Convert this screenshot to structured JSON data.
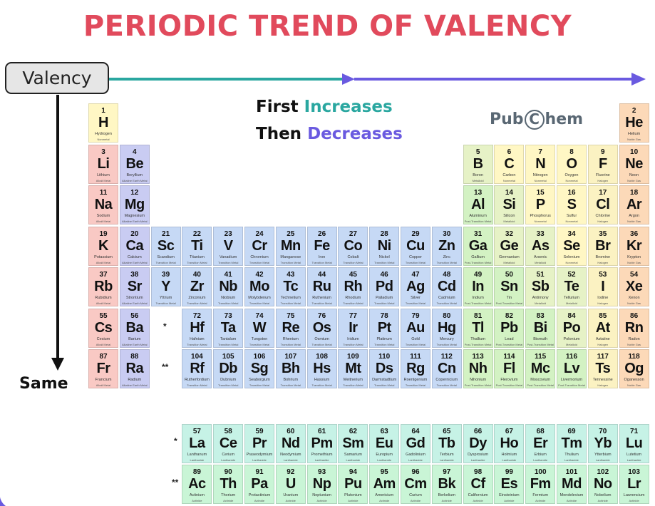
{
  "title": "PERIODIC TREND OF VALENCY",
  "axis_label": "Valency",
  "down_label": "Same",
  "trend": {
    "line1_a": "First",
    "line1_b": "Increases",
    "line2_a": "Then",
    "line2_b": "Decreases"
  },
  "brand": {
    "pub": "Pub",
    "c": "C",
    "hem": "hem"
  },
  "markers": {
    "single": "*",
    "double": "**"
  },
  "colors": {
    "title": "#e14a5c",
    "teal": "#2aa7a0",
    "purple": "#6a5ae0",
    "Nonmetal": "#fff7c4",
    "Noble Gas": "#fcd9b8",
    "Alkali Metal": "#f9c9c4",
    "Alkaline Earth Metal": "#c9ccf2",
    "Transition Metal": "#c6d9f5",
    "Post-Transition Metal": "#d3f2c3",
    "Metalloid": "#e6f2c6",
    "Halogen": "#fbf2c2",
    "Lanthanide": "#c6f2e6",
    "Actinide": "#c9f5d6"
  },
  "elements": [
    {
      "n": 1,
      "s": "H",
      "name": "Hydrogen",
      "cat": "Nonmetal",
      "r": 1,
      "c": 1
    },
    {
      "n": 2,
      "s": "He",
      "name": "Helium",
      "cat": "Noble Gas",
      "r": 1,
      "c": 18
    },
    {
      "n": 3,
      "s": "Li",
      "name": "Lithium",
      "cat": "Alkali Metal",
      "r": 2,
      "c": 1
    },
    {
      "n": 4,
      "s": "Be",
      "name": "Beryllium",
      "cat": "Alkaline Earth Metal",
      "r": 2,
      "c": 2
    },
    {
      "n": 5,
      "s": "B",
      "name": "Boron",
      "cat": "Metalloid",
      "r": 2,
      "c": 13
    },
    {
      "n": 6,
      "s": "C",
      "name": "Carbon",
      "cat": "Nonmetal",
      "r": 2,
      "c": 14
    },
    {
      "n": 7,
      "s": "N",
      "name": "Nitrogen",
      "cat": "Nonmetal",
      "r": 2,
      "c": 15
    },
    {
      "n": 8,
      "s": "O",
      "name": "Oxygen",
      "cat": "Nonmetal",
      "r": 2,
      "c": 16
    },
    {
      "n": 9,
      "s": "F",
      "name": "Fluorine",
      "cat": "Halogen",
      "r": 2,
      "c": 17
    },
    {
      "n": 10,
      "s": "Ne",
      "name": "Neon",
      "cat": "Noble Gas",
      "r": 2,
      "c": 18
    },
    {
      "n": 11,
      "s": "Na",
      "name": "Sodium",
      "cat": "Alkali Metal",
      "r": 3,
      "c": 1
    },
    {
      "n": 12,
      "s": "Mg",
      "name": "Magnesium",
      "cat": "Alkaline Earth Metal",
      "r": 3,
      "c": 2
    },
    {
      "n": 13,
      "s": "Al",
      "name": "Aluminum",
      "cat": "Post-Transition Metal",
      "r": 3,
      "c": 13
    },
    {
      "n": 14,
      "s": "Si",
      "name": "Silicon",
      "cat": "Metalloid",
      "r": 3,
      "c": 14
    },
    {
      "n": 15,
      "s": "P",
      "name": "Phosphorus",
      "cat": "Nonmetal",
      "r": 3,
      "c": 15
    },
    {
      "n": 16,
      "s": "S",
      "name": "Sulfur",
      "cat": "Nonmetal",
      "r": 3,
      "c": 16
    },
    {
      "n": 17,
      "s": "Cl",
      "name": "Chlorine",
      "cat": "Halogen",
      "r": 3,
      "c": 17
    },
    {
      "n": 18,
      "s": "Ar",
      "name": "Argon",
      "cat": "Noble Gas",
      "r": 3,
      "c": 18
    },
    {
      "n": 19,
      "s": "K",
      "name": "Potassium",
      "cat": "Alkali Metal",
      "r": 4,
      "c": 1
    },
    {
      "n": 20,
      "s": "Ca",
      "name": "Calcium",
      "cat": "Alkaline Earth Metal",
      "r": 4,
      "c": 2
    },
    {
      "n": 21,
      "s": "Sc",
      "name": "Scandium",
      "cat": "Transition Metal",
      "r": 4,
      "c": 3
    },
    {
      "n": 22,
      "s": "Ti",
      "name": "Titanium",
      "cat": "Transition Metal",
      "r": 4,
      "c": 4
    },
    {
      "n": 23,
      "s": "V",
      "name": "Vanadium",
      "cat": "Transition Metal",
      "r": 4,
      "c": 5
    },
    {
      "n": 24,
      "s": "Cr",
      "name": "Chromium",
      "cat": "Transition Metal",
      "r": 4,
      "c": 6
    },
    {
      "n": 25,
      "s": "Mn",
      "name": "Manganese",
      "cat": "Transition Metal",
      "r": 4,
      "c": 7
    },
    {
      "n": 26,
      "s": "Fe",
      "name": "Iron",
      "cat": "Transition Metal",
      "r": 4,
      "c": 8
    },
    {
      "n": 27,
      "s": "Co",
      "name": "Cobalt",
      "cat": "Transition Metal",
      "r": 4,
      "c": 9
    },
    {
      "n": 28,
      "s": "Ni",
      "name": "Nickel",
      "cat": "Transition Metal",
      "r": 4,
      "c": 10
    },
    {
      "n": 29,
      "s": "Cu",
      "name": "Copper",
      "cat": "Transition Metal",
      "r": 4,
      "c": 11
    },
    {
      "n": 30,
      "s": "Zn",
      "name": "Zinc",
      "cat": "Transition Metal",
      "r": 4,
      "c": 12
    },
    {
      "n": 31,
      "s": "Ga",
      "name": "Gallium",
      "cat": "Post-Transition Metal",
      "r": 4,
      "c": 13
    },
    {
      "n": 32,
      "s": "Ge",
      "name": "Germanium",
      "cat": "Metalloid",
      "r": 4,
      "c": 14
    },
    {
      "n": 33,
      "s": "As",
      "name": "Arsenic",
      "cat": "Metalloid",
      "r": 4,
      "c": 15
    },
    {
      "n": 34,
      "s": "Se",
      "name": "Selenium",
      "cat": "Nonmetal",
      "r": 4,
      "c": 16
    },
    {
      "n": 35,
      "s": "Br",
      "name": "Bromine",
      "cat": "Halogen",
      "r": 4,
      "c": 17
    },
    {
      "n": 36,
      "s": "Kr",
      "name": "Krypton",
      "cat": "Noble Gas",
      "r": 4,
      "c": 18
    },
    {
      "n": 37,
      "s": "Rb",
      "name": "Rubidium",
      "cat": "Alkali Metal",
      "r": 5,
      "c": 1
    },
    {
      "n": 38,
      "s": "Sr",
      "name": "Strontium",
      "cat": "Alkaline Earth Metal",
      "r": 5,
      "c": 2
    },
    {
      "n": 39,
      "s": "Y",
      "name": "Yttrium",
      "cat": "Transition Metal",
      "r": 5,
      "c": 3
    },
    {
      "n": 40,
      "s": "Zr",
      "name": "Zirconium",
      "cat": "Transition Metal",
      "r": 5,
      "c": 4
    },
    {
      "n": 41,
      "s": "Nb",
      "name": "Niobium",
      "cat": "Transition Metal",
      "r": 5,
      "c": 5
    },
    {
      "n": 42,
      "s": "Mo",
      "name": "Molybdenum",
      "cat": "Transition Metal",
      "r": 5,
      "c": 6
    },
    {
      "n": 43,
      "s": "Tc",
      "name": "Technetium",
      "cat": "Transition Metal",
      "r": 5,
      "c": 7
    },
    {
      "n": 44,
      "s": "Ru",
      "name": "Ruthenium",
      "cat": "Transition Metal",
      "r": 5,
      "c": 8
    },
    {
      "n": 45,
      "s": "Rh",
      "name": "Rhodium",
      "cat": "Transition Metal",
      "r": 5,
      "c": 9
    },
    {
      "n": 46,
      "s": "Pd",
      "name": "Palladium",
      "cat": "Transition Metal",
      "r": 5,
      "c": 10
    },
    {
      "n": 47,
      "s": "Ag",
      "name": "Silver",
      "cat": "Transition Metal",
      "r": 5,
      "c": 11
    },
    {
      "n": 48,
      "s": "Cd",
      "name": "Cadmium",
      "cat": "Transition Metal",
      "r": 5,
      "c": 12
    },
    {
      "n": 49,
      "s": "In",
      "name": "Indium",
      "cat": "Post-Transition Metal",
      "r": 5,
      "c": 13
    },
    {
      "n": 50,
      "s": "Sn",
      "name": "Tin",
      "cat": "Post-Transition Metal",
      "r": 5,
      "c": 14
    },
    {
      "n": 51,
      "s": "Sb",
      "name": "Antimony",
      "cat": "Metalloid",
      "r": 5,
      "c": 15
    },
    {
      "n": 52,
      "s": "Te",
      "name": "Tellurium",
      "cat": "Metalloid",
      "r": 5,
      "c": 16
    },
    {
      "n": 53,
      "s": "I",
      "name": "Iodine",
      "cat": "Halogen",
      "r": 5,
      "c": 17
    },
    {
      "n": 54,
      "s": "Xe",
      "name": "Xenon",
      "cat": "Noble Gas",
      "r": 5,
      "c": 18
    },
    {
      "n": 55,
      "s": "Cs",
      "name": "Cesium",
      "cat": "Alkali Metal",
      "r": 6,
      "c": 1
    },
    {
      "n": 56,
      "s": "Ba",
      "name": "Barium",
      "cat": "Alkaline Earth Metal",
      "r": 6,
      "c": 2
    },
    {
      "n": 72,
      "s": "Hf",
      "name": "Hafnium",
      "cat": "Transition Metal",
      "r": 6,
      "c": 4
    },
    {
      "n": 73,
      "s": "Ta",
      "name": "Tantalum",
      "cat": "Transition Metal",
      "r": 6,
      "c": 5
    },
    {
      "n": 74,
      "s": "W",
      "name": "Tungsten",
      "cat": "Transition Metal",
      "r": 6,
      "c": 6
    },
    {
      "n": 75,
      "s": "Re",
      "name": "Rhenium",
      "cat": "Transition Metal",
      "r": 6,
      "c": 7
    },
    {
      "n": 76,
      "s": "Os",
      "name": "Osmium",
      "cat": "Transition Metal",
      "r": 6,
      "c": 8
    },
    {
      "n": 77,
      "s": "Ir",
      "name": "Iridium",
      "cat": "Transition Metal",
      "r": 6,
      "c": 9
    },
    {
      "n": 78,
      "s": "Pt",
      "name": "Platinum",
      "cat": "Transition Metal",
      "r": 6,
      "c": 10
    },
    {
      "n": 79,
      "s": "Au",
      "name": "Gold",
      "cat": "Transition Metal",
      "r": 6,
      "c": 11
    },
    {
      "n": 80,
      "s": "Hg",
      "name": "Mercury",
      "cat": "Transition Metal",
      "r": 6,
      "c": 12
    },
    {
      "n": 81,
      "s": "Tl",
      "name": "Thallium",
      "cat": "Post-Transition Metal",
      "r": 6,
      "c": 13
    },
    {
      "n": 82,
      "s": "Pb",
      "name": "Lead",
      "cat": "Post-Transition Metal",
      "r": 6,
      "c": 14
    },
    {
      "n": 83,
      "s": "Bi",
      "name": "Bismuth",
      "cat": "Post-Transition Metal",
      "r": 6,
      "c": 15
    },
    {
      "n": 84,
      "s": "Po",
      "name": "Polonium",
      "cat": "Metalloid",
      "r": 6,
      "c": 16
    },
    {
      "n": 85,
      "s": "At",
      "name": "Astatine",
      "cat": "Halogen",
      "r": 6,
      "c": 17
    },
    {
      "n": 86,
      "s": "Rn",
      "name": "Radon",
      "cat": "Noble Gas",
      "r": 6,
      "c": 18
    },
    {
      "n": 87,
      "s": "Fr",
      "name": "Francium",
      "cat": "Alkali Metal",
      "r": 7,
      "c": 1
    },
    {
      "n": 88,
      "s": "Ra",
      "name": "Radium",
      "cat": "Alkaline Earth Metal",
      "r": 7,
      "c": 2
    },
    {
      "n": 104,
      "s": "Rf",
      "name": "Rutherfordium",
      "cat": "Transition Metal",
      "r": 7,
      "c": 4
    },
    {
      "n": 105,
      "s": "Db",
      "name": "Dubnium",
      "cat": "Transition Metal",
      "r": 7,
      "c": 5
    },
    {
      "n": 106,
      "s": "Sg",
      "name": "Seaborgium",
      "cat": "Transition Metal",
      "r": 7,
      "c": 6
    },
    {
      "n": 107,
      "s": "Bh",
      "name": "Bohrium",
      "cat": "Transition Metal",
      "r": 7,
      "c": 7
    },
    {
      "n": 108,
      "s": "Hs",
      "name": "Hassium",
      "cat": "Transition Metal",
      "r": 7,
      "c": 8
    },
    {
      "n": 109,
      "s": "Mt",
      "name": "Meitnerium",
      "cat": "Transition Metal",
      "r": 7,
      "c": 9
    },
    {
      "n": 110,
      "s": "Ds",
      "name": "Darmstadtium",
      "cat": "Transition Metal",
      "r": 7,
      "c": 10
    },
    {
      "n": 111,
      "s": "Rg",
      "name": "Roentgenium",
      "cat": "Transition Metal",
      "r": 7,
      "c": 11
    },
    {
      "n": 112,
      "s": "Cn",
      "name": "Copernicium",
      "cat": "Transition Metal",
      "r": 7,
      "c": 12
    },
    {
      "n": 113,
      "s": "Nh",
      "name": "Nihonium",
      "cat": "Post-Transition Metal",
      "r": 7,
      "c": 13
    },
    {
      "n": 114,
      "s": "Fl",
      "name": "Flerovium",
      "cat": "Post-Transition Metal",
      "r": 7,
      "c": 14
    },
    {
      "n": 115,
      "s": "Mc",
      "name": "Moscovium",
      "cat": "Post-Transition Metal",
      "r": 7,
      "c": 15
    },
    {
      "n": 116,
      "s": "Lv",
      "name": "Livermorium",
      "cat": "Post-Transition Metal",
      "r": 7,
      "c": 16
    },
    {
      "n": 117,
      "s": "Ts",
      "name": "Tennessine",
      "cat": "Halogen",
      "r": 7,
      "c": 17
    },
    {
      "n": 118,
      "s": "Og",
      "name": "Oganesson",
      "cat": "Noble Gas",
      "r": 7,
      "c": 18
    },
    {
      "n": 57,
      "s": "La",
      "name": "Lanthanum",
      "cat": "Lanthanide",
      "r": 9,
      "c": 4
    },
    {
      "n": 58,
      "s": "Ce",
      "name": "Cerium",
      "cat": "Lanthanide",
      "r": 9,
      "c": 5
    },
    {
      "n": 59,
      "s": "Pr",
      "name": "Praseodymium",
      "cat": "Lanthanide",
      "r": 9,
      "c": 6
    },
    {
      "n": 60,
      "s": "Nd",
      "name": "Neodymium",
      "cat": "Lanthanide",
      "r": 9,
      "c": 7
    },
    {
      "n": 61,
      "s": "Pm",
      "name": "Promethium",
      "cat": "Lanthanide",
      "r": 9,
      "c": 8
    },
    {
      "n": 62,
      "s": "Sm",
      "name": "Samarium",
      "cat": "Lanthanide",
      "r": 9,
      "c": 9
    },
    {
      "n": 63,
      "s": "Eu",
      "name": "Europium",
      "cat": "Lanthanide",
      "r": 9,
      "c": 10
    },
    {
      "n": 64,
      "s": "Gd",
      "name": "Gadolinium",
      "cat": "Lanthanide",
      "r": 9,
      "c": 11
    },
    {
      "n": 65,
      "s": "Tb",
      "name": "Terbium",
      "cat": "Lanthanide",
      "r": 9,
      "c": 12
    },
    {
      "n": 66,
      "s": "Dy",
      "name": "Dysprosium",
      "cat": "Lanthanide",
      "r": 9,
      "c": 13
    },
    {
      "n": 67,
      "s": "Ho",
      "name": "Holmium",
      "cat": "Lanthanide",
      "r": 9,
      "c": 14
    },
    {
      "n": 68,
      "s": "Er",
      "name": "Erbium",
      "cat": "Lanthanide",
      "r": 9,
      "c": 15
    },
    {
      "n": 69,
      "s": "Tm",
      "name": "Thulium",
      "cat": "Lanthanide",
      "r": 9,
      "c": 16
    },
    {
      "n": 70,
      "s": "Yb",
      "name": "Ytterbium",
      "cat": "Lanthanide",
      "r": 9,
      "c": 17
    },
    {
      "n": 71,
      "s": "Lu",
      "name": "Lutetium",
      "cat": "Lanthanide",
      "r": 9,
      "c": 18
    },
    {
      "n": 89,
      "s": "Ac",
      "name": "Actinium",
      "cat": "Actinide",
      "r": 10,
      "c": 4
    },
    {
      "n": 90,
      "s": "Th",
      "name": "Thorium",
      "cat": "Actinide",
      "r": 10,
      "c": 5
    },
    {
      "n": 91,
      "s": "Pa",
      "name": "Protactinium",
      "cat": "Actinide",
      "r": 10,
      "c": 6
    },
    {
      "n": 92,
      "s": "U",
      "name": "Uranium",
      "cat": "Actinide",
      "r": 10,
      "c": 7
    },
    {
      "n": 93,
      "s": "Np",
      "name": "Neptunium",
      "cat": "Actinide",
      "r": 10,
      "c": 8
    },
    {
      "n": 94,
      "s": "Pu",
      "name": "Plutonium",
      "cat": "Actinide",
      "r": 10,
      "c": 9
    },
    {
      "n": 95,
      "s": "Am",
      "name": "Americium",
      "cat": "Actinide",
      "r": 10,
      "c": 10
    },
    {
      "n": 96,
      "s": "Cm",
      "name": "Curium",
      "cat": "Actinide",
      "r": 10,
      "c": 11
    },
    {
      "n": 97,
      "s": "Bk",
      "name": "Berkelium",
      "cat": "Actinide",
      "r": 10,
      "c": 12
    },
    {
      "n": 98,
      "s": "Cf",
      "name": "Californium",
      "cat": "Actinide",
      "r": 10,
      "c": 13
    },
    {
      "n": 99,
      "s": "Es",
      "name": "Einsteinium",
      "cat": "Actinide",
      "r": 10,
      "c": 14
    },
    {
      "n": 100,
      "s": "Fm",
      "name": "Fermium",
      "cat": "Actinide",
      "r": 10,
      "c": 15
    },
    {
      "n": 101,
      "s": "Md",
      "name": "Mendelevium",
      "cat": "Actinide",
      "r": 10,
      "c": 16
    },
    {
      "n": 102,
      "s": "No",
      "name": "Nobelium",
      "cat": "Actinide",
      "r": 10,
      "c": 17
    },
    {
      "n": 103,
      "s": "Lr",
      "name": "Lawrencium",
      "cat": "Actinide",
      "r": 10,
      "c": 18
    }
  ]
}
